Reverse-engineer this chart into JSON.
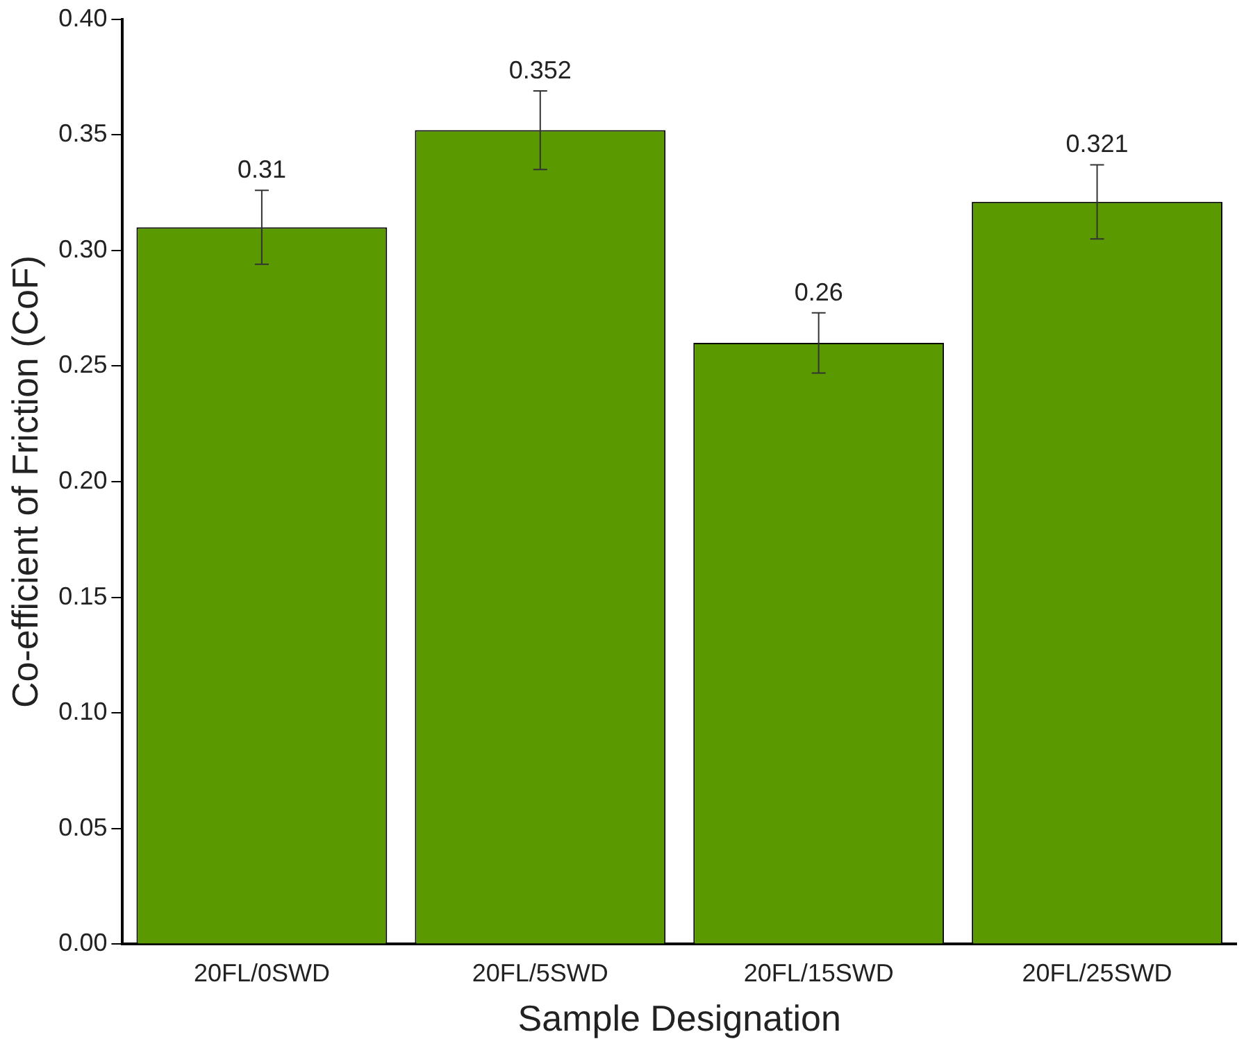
{
  "chart_data": {
    "type": "bar",
    "xlabel": "Sample Designation",
    "ylabel": "Co-efficient of Friction (CoF)",
    "categories": [
      "20FL/0SWD",
      "20FL/5SWD",
      "20FL/15SWD",
      "20FL/25SWD"
    ],
    "values": [
      0.31,
      0.352,
      0.26,
      0.321
    ],
    "errors": [
      0.016,
      0.017,
      0.013,
      0.016
    ],
    "color": "#5a9a00",
    "ylim": [
      0,
      0.4
    ],
    "yticks": [
      {
        "value": 0,
        "label": "0.00"
      },
      {
        "value": 0.05,
        "label": "0.05"
      },
      {
        "value": 0.1,
        "label": "0.10"
      },
      {
        "value": 0.15,
        "label": "0.15"
      },
      {
        "value": 0.2,
        "label": "0.20"
      },
      {
        "value": 0.25,
        "label": "0.25"
      },
      {
        "value": 0.3,
        "label": "0.30"
      },
      {
        "value": 0.35,
        "label": "0.35"
      },
      {
        "value": 0.4,
        "label": "0.40"
      }
    ],
    "grid": false,
    "legend": false,
    "data_labels": true
  }
}
